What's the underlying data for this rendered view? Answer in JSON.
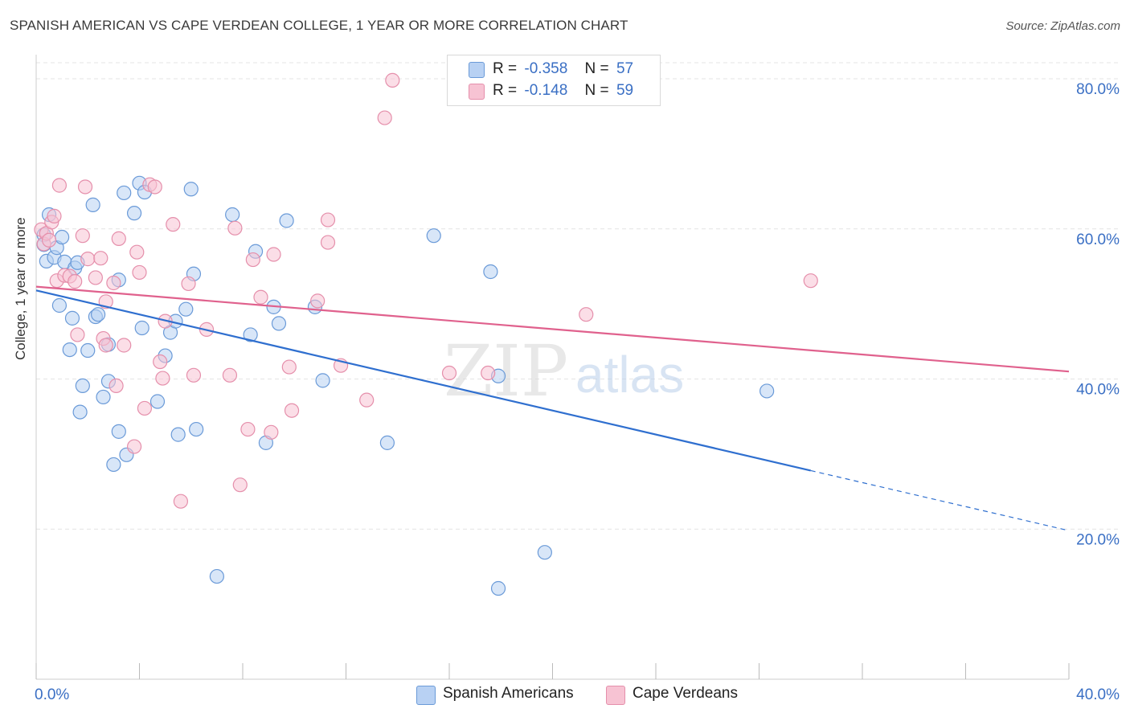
{
  "header": {
    "title": "SPANISH AMERICAN VS CAPE VERDEAN COLLEGE, 1 YEAR OR MORE CORRELATION CHART",
    "source": "Source: ZipAtlas.com"
  },
  "watermark": {
    "zip": "ZIP",
    "atlas": "atlas"
  },
  "legend": {
    "rows": [
      {
        "r_label": "R =",
        "r_value": "-0.358",
        "n_label": "N =",
        "n_value": "57"
      },
      {
        "r_label": "R =",
        "r_value": "-0.148",
        "n_label": "N =",
        "n_value": "59"
      }
    ]
  },
  "bottom_legend": {
    "items": [
      "Spanish Americans",
      "Cape Verdeans"
    ]
  },
  "colors": {
    "blue_fill": "#b8d1f3",
    "blue_stroke": "#6a9ad8",
    "blue_line": "#2f6fcf",
    "pink_fill": "#f7c3d3",
    "pink_stroke": "#e58fab",
    "pink_line": "#e0618d",
    "tick_text": "#3a6fc4",
    "grid": "#e4e4e4"
  },
  "chart_data": {
    "type": "scatter",
    "title": "SPANISH AMERICAN VS CAPE VERDEAN COLLEGE, 1 YEAR OR MORE CORRELATION CHART",
    "xlabel": "",
    "ylabel": "College, 1 year or more",
    "xlim": [
      0,
      40
    ],
    "ylim": [
      0,
      83
    ],
    "x_tick_labels": [
      "0.0%",
      "40.0%"
    ],
    "y_ticks": [
      20,
      40,
      60,
      80
    ],
    "y_tick_labels": [
      "20.0%",
      "40.0%",
      "60.0%",
      "80.0%"
    ],
    "grid": true,
    "legend_position": "top-center",
    "series": [
      {
        "name": "Spanish Americans",
        "r": -0.358,
        "n": 57,
        "trend": {
          "x0": 0,
          "y0": 51.8,
          "x1": 40,
          "y1": 19.8,
          "solid_until_x": 30.0
        },
        "points": [
          [
            0.3,
            59.2
          ],
          [
            0.3,
            57.9
          ],
          [
            0.4,
            55.7
          ],
          [
            0.5,
            61.9
          ],
          [
            0.7,
            56.2
          ],
          [
            0.8,
            57.5
          ],
          [
            0.9,
            49.8
          ],
          [
            1.0,
            58.9
          ],
          [
            1.1,
            55.6
          ],
          [
            1.3,
            43.9
          ],
          [
            1.4,
            48.1
          ],
          [
            1.5,
            54.8
          ],
          [
            1.6,
            55.5
          ],
          [
            1.7,
            35.6
          ],
          [
            1.8,
            39.1
          ],
          [
            2.0,
            43.8
          ],
          [
            2.2,
            63.2
          ],
          [
            2.3,
            48.3
          ],
          [
            2.4,
            48.6
          ],
          [
            2.6,
            37.6
          ],
          [
            2.8,
            44.6
          ],
          [
            2.8,
            39.7
          ],
          [
            3.0,
            28.6
          ],
          [
            3.2,
            33.0
          ],
          [
            3.2,
            53.2
          ],
          [
            3.4,
            64.8
          ],
          [
            3.5,
            29.9
          ],
          [
            3.8,
            62.1
          ],
          [
            4.0,
            66.1
          ],
          [
            4.1,
            46.8
          ],
          [
            4.2,
            64.9
          ],
          [
            4.7,
            37.0
          ],
          [
            5.0,
            43.1
          ],
          [
            5.2,
            46.2
          ],
          [
            5.4,
            47.7
          ],
          [
            5.5,
            32.6
          ],
          [
            5.8,
            49.3
          ],
          [
            6.0,
            65.3
          ],
          [
            6.1,
            54.0
          ],
          [
            6.2,
            33.3
          ],
          [
            7.0,
            13.7
          ],
          [
            7.6,
            61.9
          ],
          [
            8.3,
            45.9
          ],
          [
            8.5,
            57.0
          ],
          [
            8.9,
            31.5
          ],
          [
            9.2,
            49.6
          ],
          [
            9.4,
            47.4
          ],
          [
            9.7,
            61.1
          ],
          [
            10.8,
            49.6
          ],
          [
            11.1,
            39.8
          ],
          [
            13.6,
            31.5
          ],
          [
            15.4,
            59.1
          ],
          [
            17.6,
            54.3
          ],
          [
            17.9,
            12.1
          ],
          [
            17.9,
            40.4
          ],
          [
            19.7,
            16.9
          ],
          [
            28.3,
            38.4
          ]
        ]
      },
      {
        "name": "Cape Verdeans",
        "r": -0.148,
        "n": 59,
        "trend": {
          "x0": 0,
          "y0": 52.3,
          "x1": 40,
          "y1": 41.0,
          "solid_until_x": 40
        },
        "points": [
          [
            0.2,
            59.9
          ],
          [
            0.3,
            58.0
          ],
          [
            0.4,
            59.4
          ],
          [
            0.5,
            58.5
          ],
          [
            0.6,
            60.9
          ],
          [
            0.7,
            61.7
          ],
          [
            0.8,
            53.1
          ],
          [
            0.9,
            65.8
          ],
          [
            1.1,
            53.8
          ],
          [
            1.3,
            53.7
          ],
          [
            1.5,
            53.0
          ],
          [
            1.6,
            45.9
          ],
          [
            1.8,
            59.1
          ],
          [
            1.9,
            65.6
          ],
          [
            2.0,
            56.0
          ],
          [
            2.3,
            53.5
          ],
          [
            2.5,
            56.1
          ],
          [
            2.6,
            45.4
          ],
          [
            2.7,
            50.3
          ],
          [
            2.7,
            44.5
          ],
          [
            3.0,
            52.8
          ],
          [
            3.1,
            39.1
          ],
          [
            3.2,
            58.7
          ],
          [
            3.4,
            44.5
          ],
          [
            3.8,
            31.0
          ],
          [
            3.9,
            56.9
          ],
          [
            4.0,
            54.2
          ],
          [
            4.2,
            36.1
          ],
          [
            4.4,
            65.9
          ],
          [
            4.6,
            65.6
          ],
          [
            4.8,
            42.3
          ],
          [
            4.9,
            40.1
          ],
          [
            5.0,
            47.7
          ],
          [
            5.3,
            60.6
          ],
          [
            5.6,
            23.7
          ],
          [
            5.9,
            52.7
          ],
          [
            6.1,
            40.5
          ],
          [
            6.6,
            46.6
          ],
          [
            7.5,
            40.5
          ],
          [
            7.7,
            60.1
          ],
          [
            7.9,
            25.9
          ],
          [
            8.2,
            33.3
          ],
          [
            8.4,
            55.9
          ],
          [
            8.7,
            50.9
          ],
          [
            9.1,
            32.9
          ],
          [
            9.2,
            56.6
          ],
          [
            9.8,
            41.6
          ],
          [
            9.9,
            35.8
          ],
          [
            10.9,
            50.4
          ],
          [
            11.3,
            61.2
          ],
          [
            11.3,
            58.2
          ],
          [
            11.8,
            41.8
          ],
          [
            12.8,
            37.2
          ],
          [
            13.5,
            74.8
          ],
          [
            13.8,
            79.8
          ],
          [
            16.0,
            40.8
          ],
          [
            17.5,
            40.8
          ],
          [
            21.3,
            48.6
          ],
          [
            30.0,
            53.1
          ]
        ]
      }
    ]
  }
}
